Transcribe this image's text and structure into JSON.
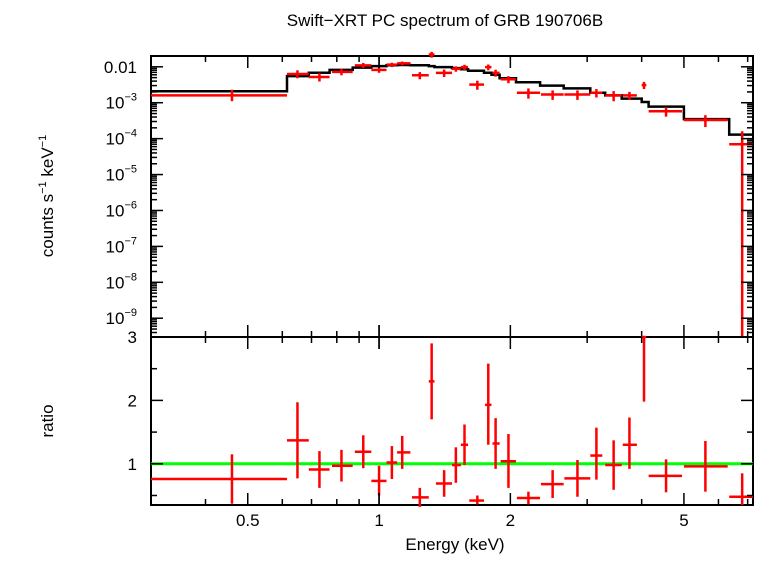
{
  "chart_data": {
    "type": "scatter",
    "title": "Swift−XRT PC spectrum of GRB 190706B",
    "xlabel": "Energy (keV)",
    "x_scale": "log",
    "x_range": [
      0.3,
      7.2
    ],
    "x_ticks": [
      {
        "value": 0.5,
        "label": "0.5"
      },
      {
        "value": 1,
        "label": "1"
      },
      {
        "value": 2,
        "label": "2"
      },
      {
        "value": 5,
        "label": "5"
      }
    ],
    "colors": {
      "data": "#ff0000",
      "model": "#000000",
      "unity": "#00ff00",
      "axes": "#000000"
    },
    "top_panel": {
      "ylabel_parts": [
        "counts s",
        "−1",
        " keV",
        "−1"
      ],
      "y_scale": "log",
      "y_range": [
        3e-10,
        0.02
      ],
      "y_ticks": [
        {
          "value": 0.01,
          "base": "0.01",
          "exp": ""
        },
        {
          "value": 0.001,
          "base": "10",
          "exp": "−3"
        },
        {
          "value": 0.0001,
          "base": "10",
          "exp": "−4"
        },
        {
          "value": 1e-05,
          "base": "10",
          "exp": "−5"
        },
        {
          "value": 1e-06,
          "base": "10",
          "exp": "−6"
        },
        {
          "value": 1e-07,
          "base": "10",
          "exp": "−7"
        },
        {
          "value": 1e-08,
          "base": "10",
          "exp": "−8"
        },
        {
          "value": 1e-09,
          "base": "10",
          "exp": "−9"
        }
      ],
      "data_points": [
        {
          "x": 0.46,
          "xlo": 0.3,
          "xhi": 0.615,
          "y": 0.0016,
          "ylo": 0.0011,
          "yhi": 0.0023
        },
        {
          "x": 0.65,
          "xlo": 0.615,
          "xhi": 0.69,
          "y": 0.0063,
          "ylo": 0.0048,
          "yhi": 0.008
        },
        {
          "x": 0.73,
          "xlo": 0.69,
          "xhi": 0.77,
          "y": 0.0052,
          "ylo": 0.0039,
          "yhi": 0.0066
        },
        {
          "x": 0.82,
          "xlo": 0.78,
          "xhi": 0.87,
          "y": 0.0072,
          "ylo": 0.0058,
          "yhi": 0.0088
        },
        {
          "x": 0.92,
          "xlo": 0.88,
          "xhi": 0.96,
          "y": 0.011,
          "ylo": 0.0093,
          "yhi": 0.0128
        },
        {
          "x": 1.0,
          "xlo": 0.96,
          "xhi": 1.04,
          "y": 0.0082,
          "ylo": 0.0068,
          "yhi": 0.0097
        },
        {
          "x": 1.07,
          "xlo": 1.04,
          "xhi": 1.1,
          "y": 0.0115,
          "ylo": 0.0098,
          "yhi": 0.013
        },
        {
          "x": 1.13,
          "xlo": 1.1,
          "xhi": 1.18,
          "y": 0.0125,
          "ylo": 0.011,
          "yhi": 0.014
        },
        {
          "x": 1.24,
          "xlo": 1.19,
          "xhi": 1.3,
          "y": 0.0058,
          "ylo": 0.0045,
          "yhi": 0.0071
        },
        {
          "x": 1.32,
          "xlo": 1.3,
          "xhi": 1.34,
          "y": 0.022,
          "ylo": 0.018,
          "yhi": 0.026
        },
        {
          "x": 1.41,
          "xlo": 1.35,
          "xhi": 1.47,
          "y": 0.0068,
          "ylo": 0.0052,
          "yhi": 0.0084
        },
        {
          "x": 1.5,
          "xlo": 1.47,
          "xhi": 1.54,
          "y": 0.0088,
          "ylo": 0.0073,
          "yhi": 0.0103
        },
        {
          "x": 1.57,
          "xlo": 1.54,
          "xhi": 1.6,
          "y": 0.0098,
          "ylo": 0.0082,
          "yhi": 0.0114
        },
        {
          "x": 1.68,
          "xlo": 1.61,
          "xhi": 1.74,
          "y": 0.0032,
          "ylo": 0.0023,
          "yhi": 0.0041
        },
        {
          "x": 1.78,
          "xlo": 1.75,
          "xhi": 1.81,
          "y": 0.0098,
          "ylo": 0.008,
          "yhi": 0.0116
        },
        {
          "x": 1.85,
          "xlo": 1.82,
          "xhi": 1.89,
          "y": 0.0068,
          "ylo": 0.0053,
          "yhi": 0.0083
        },
        {
          "x": 1.98,
          "xlo": 1.9,
          "xhi": 2.06,
          "y": 0.0045,
          "ylo": 0.0035,
          "yhi": 0.0055
        },
        {
          "x": 2.2,
          "xlo": 2.07,
          "xhi": 2.34,
          "y": 0.0019,
          "ylo": 0.0013,
          "yhi": 0.0025
        },
        {
          "x": 2.5,
          "xlo": 2.35,
          "xhi": 2.65,
          "y": 0.0017,
          "ylo": 0.0012,
          "yhi": 0.0022
        },
        {
          "x": 2.85,
          "xlo": 2.66,
          "xhi": 3.05,
          "y": 0.0017,
          "ylo": 0.0012,
          "yhi": 0.0022
        },
        {
          "x": 3.15,
          "xlo": 3.05,
          "xhi": 3.25,
          "y": 0.0019,
          "ylo": 0.0014,
          "yhi": 0.0024
        },
        {
          "x": 3.45,
          "xlo": 3.3,
          "xhi": 3.6,
          "y": 0.0016,
          "ylo": 0.0011,
          "yhi": 0.0021
        },
        {
          "x": 3.75,
          "xlo": 3.62,
          "xhi": 3.9,
          "y": 0.0016,
          "ylo": 0.0012,
          "yhi": 0.002
        },
        {
          "x": 4.05,
          "xlo": 4.0,
          "xhi": 4.1,
          "y": 0.0031,
          "ylo": 0.0024,
          "yhi": 0.0038
        },
        {
          "x": 4.55,
          "xlo": 4.15,
          "xhi": 4.95,
          "y": 0.00058,
          "ylo": 0.00041,
          "yhi": 0.00075
        },
        {
          "x": 5.6,
          "xlo": 5.0,
          "xhi": 6.3,
          "y": 0.00033,
          "ylo": 0.00021,
          "yhi": 0.00045
        },
        {
          "x": 6.8,
          "xlo": 6.35,
          "xhi": 7.2,
          "y": 7e-05,
          "ylo": 3e-10,
          "yhi": 0.00016
        }
      ],
      "model_steps": [
        {
          "xlo": 0.3,
          "xhi": 0.615,
          "y": 0.0021
        },
        {
          "xlo": 0.615,
          "xhi": 0.69,
          "y": 0.0055
        },
        {
          "xlo": 0.69,
          "xhi": 0.77,
          "y": 0.0068
        },
        {
          "xlo": 0.77,
          "xhi": 0.87,
          "y": 0.0082
        },
        {
          "xlo": 0.87,
          "xhi": 0.96,
          "y": 0.0095
        },
        {
          "xlo": 0.96,
          "xhi": 1.04,
          "y": 0.0105
        },
        {
          "xlo": 1.04,
          "xhi": 1.1,
          "y": 0.011
        },
        {
          "xlo": 1.1,
          "xhi": 1.18,
          "y": 0.0112
        },
        {
          "xlo": 1.18,
          "xhi": 1.3,
          "y": 0.011
        },
        {
          "xlo": 1.3,
          "xhi": 1.34,
          "y": 0.0105
        },
        {
          "xlo": 1.34,
          "xhi": 1.47,
          "y": 0.0098
        },
        {
          "xlo": 1.47,
          "xhi": 1.54,
          "y": 0.0092
        },
        {
          "xlo": 1.54,
          "xhi": 1.6,
          "y": 0.0086
        },
        {
          "xlo": 1.6,
          "xhi": 1.74,
          "y": 0.0078
        },
        {
          "xlo": 1.74,
          "xhi": 1.81,
          "y": 0.0068
        },
        {
          "xlo": 1.81,
          "xhi": 1.89,
          "y": 0.006
        },
        {
          "xlo": 1.89,
          "xhi": 2.06,
          "y": 0.0048
        },
        {
          "xlo": 2.06,
          "xhi": 2.34,
          "y": 0.0037
        },
        {
          "xlo": 2.34,
          "xhi": 2.65,
          "y": 0.003
        },
        {
          "xlo": 2.65,
          "xhi": 3.05,
          "y": 0.0025
        },
        {
          "xlo": 3.05,
          "xhi": 3.3,
          "y": 0.0019
        },
        {
          "xlo": 3.3,
          "xhi": 3.6,
          "y": 0.0016
        },
        {
          "xlo": 3.6,
          "xhi": 4.0,
          "y": 0.0013
        },
        {
          "xlo": 4.0,
          "xhi": 4.15,
          "y": 0.00105
        },
        {
          "xlo": 4.15,
          "xhi": 5.0,
          "y": 0.00078
        },
        {
          "xlo": 5.0,
          "xhi": 6.35,
          "y": 0.00035
        },
        {
          "xlo": 6.35,
          "xhi": 7.2,
          "y": 0.00013
        }
      ]
    },
    "bottom_panel": {
      "ylabel": "ratio",
      "y_scale": "linear",
      "y_range": [
        0.35,
        3.0
      ],
      "y_ticks": [
        {
          "value": 1,
          "label": "1"
        },
        {
          "value": 2,
          "label": "2"
        },
        {
          "value": 3,
          "label": "3"
        }
      ],
      "unity_line": 1.0,
      "data_points": [
        {
          "x": 0.46,
          "xlo": 0.3,
          "xhi": 0.615,
          "y": 0.76,
          "ylo": 0.37,
          "yhi": 1.15
        },
        {
          "x": 0.65,
          "xlo": 0.615,
          "xhi": 0.69,
          "y": 1.37,
          "ylo": 0.77,
          "yhi": 1.97
        },
        {
          "x": 0.73,
          "xlo": 0.69,
          "xhi": 0.77,
          "y": 0.91,
          "ylo": 0.62,
          "yhi": 1.2
        },
        {
          "x": 0.82,
          "xlo": 0.78,
          "xhi": 0.87,
          "y": 0.97,
          "ylo": 0.72,
          "yhi": 1.22
        },
        {
          "x": 0.92,
          "xlo": 0.88,
          "xhi": 0.96,
          "y": 1.19,
          "ylo": 0.93,
          "yhi": 1.45
        },
        {
          "x": 1.0,
          "xlo": 0.96,
          "xhi": 1.04,
          "y": 0.73,
          "ylo": 0.5,
          "yhi": 0.97
        },
        {
          "x": 1.07,
          "xlo": 1.04,
          "xhi": 1.1,
          "y": 1.02,
          "ylo": 0.76,
          "yhi": 1.28
        },
        {
          "x": 1.13,
          "xlo": 1.1,
          "xhi": 1.18,
          "y": 1.18,
          "ylo": 0.92,
          "yhi": 1.44
        },
        {
          "x": 1.24,
          "xlo": 1.19,
          "xhi": 1.3,
          "y": 0.47,
          "ylo": 0.32,
          "yhi": 0.62
        },
        {
          "x": 1.32,
          "xlo": 1.3,
          "xhi": 1.34,
          "y": 2.3,
          "ylo": 1.7,
          "yhi": 2.9
        },
        {
          "x": 1.41,
          "xlo": 1.35,
          "xhi": 1.47,
          "y": 0.69,
          "ylo": 0.48,
          "yhi": 0.9
        },
        {
          "x": 1.5,
          "xlo": 1.47,
          "xhi": 1.54,
          "y": 0.98,
          "ylo": 0.7,
          "yhi": 1.26
        },
        {
          "x": 1.57,
          "xlo": 1.54,
          "xhi": 1.6,
          "y": 1.3,
          "ylo": 0.98,
          "yhi": 1.62
        },
        {
          "x": 1.68,
          "xlo": 1.61,
          "xhi": 1.74,
          "y": 0.42,
          "ylo": 0.36,
          "yhi": 0.5
        },
        {
          "x": 1.78,
          "xlo": 1.75,
          "xhi": 1.81,
          "y": 1.93,
          "ylo": 1.3,
          "yhi": 2.58
        },
        {
          "x": 1.85,
          "xlo": 1.82,
          "xhi": 1.89,
          "y": 1.32,
          "ylo": 0.92,
          "yhi": 1.72
        },
        {
          "x": 1.98,
          "xlo": 1.9,
          "xhi": 2.06,
          "y": 1.04,
          "ylo": 0.62,
          "yhi": 1.47
        },
        {
          "x": 2.2,
          "xlo": 2.07,
          "xhi": 2.34,
          "y": 0.46,
          "ylo": 0.36,
          "yhi": 0.56
        },
        {
          "x": 2.5,
          "xlo": 2.35,
          "xhi": 2.65,
          "y": 0.68,
          "ylo": 0.46,
          "yhi": 0.9
        },
        {
          "x": 2.85,
          "xlo": 2.66,
          "xhi": 3.05,
          "y": 0.77,
          "ylo": 0.48,
          "yhi": 1.06
        },
        {
          "x": 3.15,
          "xlo": 3.05,
          "xhi": 3.25,
          "y": 1.13,
          "ylo": 0.75,
          "yhi": 1.57
        },
        {
          "x": 3.45,
          "xlo": 3.3,
          "xhi": 3.6,
          "y": 0.98,
          "ylo": 0.59,
          "yhi": 1.37
        },
        {
          "x": 3.75,
          "xlo": 3.62,
          "xhi": 3.9,
          "y": 1.3,
          "ylo": 0.92,
          "yhi": 1.73
        },
        {
          "x": 4.05,
          "xlo": 4.0,
          "xhi": 4.1,
          "y": 3.0,
          "ylo": 1.98,
          "yhi": 3.0
        },
        {
          "x": 4.55,
          "xlo": 4.15,
          "xhi": 4.95,
          "y": 0.81,
          "ylo": 0.55,
          "yhi": 1.07
        },
        {
          "x": 5.6,
          "xlo": 5.0,
          "xhi": 6.3,
          "y": 0.96,
          "ylo": 0.56,
          "yhi": 1.36
        },
        {
          "x": 6.8,
          "xlo": 6.35,
          "xhi": 7.2,
          "y": 0.48,
          "ylo": 0.35,
          "yhi": 0.85
        }
      ]
    }
  }
}
